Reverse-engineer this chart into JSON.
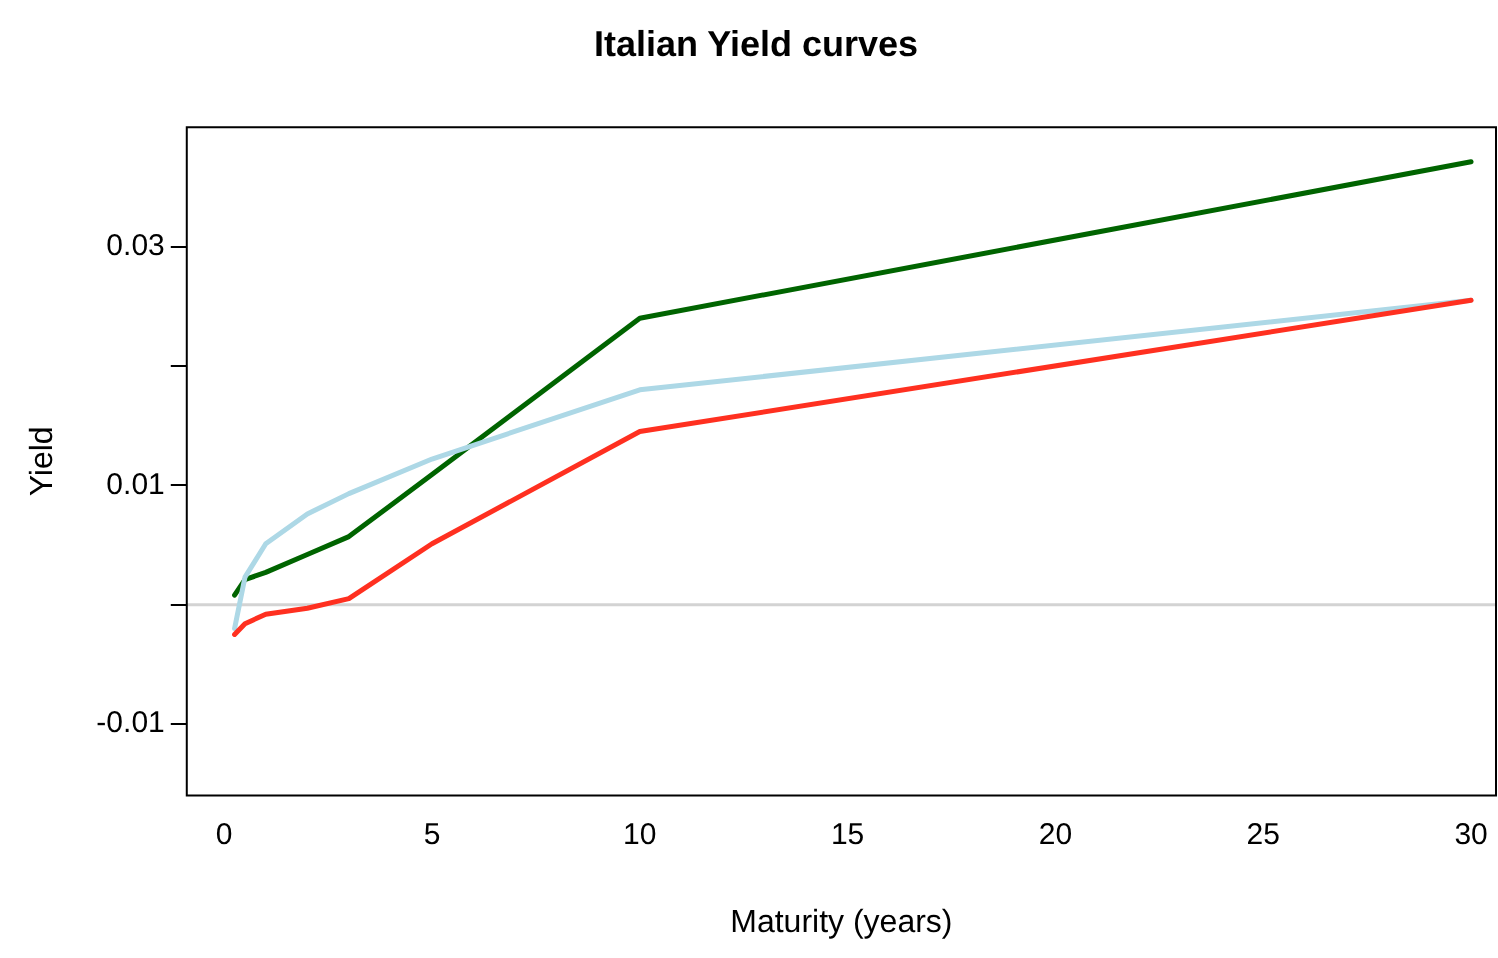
{
  "chart_data": {
    "type": "line",
    "title": "Italian Yield curves",
    "xlabel": "Maturity (years)",
    "ylabel": "Yield",
    "x": [
      0.25,
      0.5,
      1,
      2,
      3,
      5,
      10,
      30
    ],
    "series": [
      {
        "color": "#006400",
        "values": [
          0.0008,
          0.0021,
          0.0027,
          0.0042,
          0.0057,
          0.0109,
          0.024,
          0.0371
        ]
      },
      {
        "color": "#add8e6",
        "values": [
          -0.002,
          0.0023,
          0.0051,
          0.0076,
          0.0093,
          0.0122,
          0.018,
          0.0255
        ]
      },
      {
        "color": "#ff3020",
        "values": [
          -0.0025,
          -0.0016,
          -0.0008,
          -0.0003,
          0.0005,
          0.0051,
          0.0145,
          0.0255
        ]
      }
    ],
    "xlim": [
      -0.9,
      30.6
    ],
    "xticks": [
      0,
      5,
      10,
      15,
      20,
      25,
      30
    ],
    "ylim": [
      -0.016,
      0.04
    ],
    "yticks": [
      {
        "value": -0.01,
        "label": "-0.01"
      },
      {
        "value": 0,
        "label": null
      },
      {
        "value": 0.01,
        "label": "0.01"
      },
      {
        "value": 0.02,
        "label": null
      },
      {
        "value": 0.03,
        "label": "0.03"
      }
    ],
    "ref_lines": [
      {
        "axis": "y",
        "value": 0,
        "color": "#d3d3d3"
      }
    ],
    "legend": false,
    "grid": false,
    "marker": "none",
    "line_style": "solid"
  }
}
